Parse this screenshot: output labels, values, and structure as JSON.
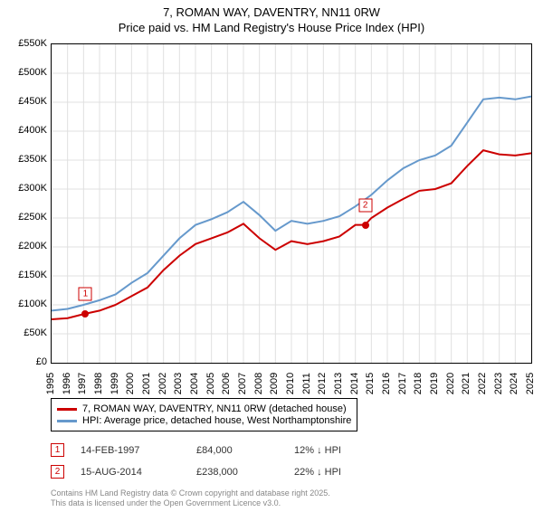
{
  "title_line1": "7, ROMAN WAY, DAVENTRY, NN11 0RW",
  "title_line2": "Price paid vs. HM Land Registry's House Price Index (HPI)",
  "chart": {
    "type": "line",
    "background_color": "#ffffff",
    "grid_color": "#e0e0e0",
    "border_color": "#000000",
    "xlim": [
      1995,
      2025
    ],
    "ylim": [
      0,
      550000
    ],
    "y_ticks": [
      0,
      50000,
      100000,
      150000,
      200000,
      250000,
      300000,
      350000,
      400000,
      450000,
      500000,
      550000
    ],
    "y_tick_labels": [
      "£0",
      "£50K",
      "£100K",
      "£150K",
      "£200K",
      "£250K",
      "£300K",
      "£350K",
      "£400K",
      "£450K",
      "£500K",
      "£550K"
    ],
    "x_ticks": [
      1995,
      1996,
      1997,
      1998,
      1999,
      2000,
      2001,
      2002,
      2003,
      2004,
      2005,
      2006,
      2007,
      2008,
      2009,
      2010,
      2011,
      2012,
      2013,
      2014,
      2015,
      2016,
      2017,
      2018,
      2019,
      2020,
      2021,
      2022,
      2023,
      2024,
      2025
    ],
    "title_fontsize": 13,
    "tick_fontsize": 11,
    "series": {
      "red": {
        "label": "7, ROMAN WAY, DAVENTRY, NN11 0RW (detached house)",
        "color": "#cc0000",
        "line_width": 2,
        "data": [
          [
            1995,
            75000
          ],
          [
            1996,
            77000
          ],
          [
            1997,
            84000
          ],
          [
            1998,
            90000
          ],
          [
            1999,
            100000
          ],
          [
            2000,
            115000
          ],
          [
            2001,
            130000
          ],
          [
            2002,
            160000
          ],
          [
            2003,
            185000
          ],
          [
            2004,
            205000
          ],
          [
            2005,
            215000
          ],
          [
            2006,
            225000
          ],
          [
            2007,
            240000
          ],
          [
            2008,
            215000
          ],
          [
            2009,
            195000
          ],
          [
            2010,
            210000
          ],
          [
            2011,
            205000
          ],
          [
            2012,
            210000
          ],
          [
            2013,
            218000
          ],
          [
            2014,
            238000
          ],
          [
            2014.6,
            238000
          ],
          [
            2015,
            250000
          ],
          [
            2016,
            268000
          ],
          [
            2017,
            283000
          ],
          [
            2018,
            297000
          ],
          [
            2019,
            300000
          ],
          [
            2020,
            310000
          ],
          [
            2021,
            340000
          ],
          [
            2022,
            367000
          ],
          [
            2023,
            360000
          ],
          [
            2024,
            358000
          ],
          [
            2025,
            362000
          ]
        ]
      },
      "blue": {
        "label": "HPI: Average price, detached house, West Northamptonshire",
        "color": "#6699cc",
        "line_width": 2,
        "data": [
          [
            1995,
            90000
          ],
          [
            1996,
            93000
          ],
          [
            1997,
            100000
          ],
          [
            1998,
            108000
          ],
          [
            1999,
            118000
          ],
          [
            2000,
            138000
          ],
          [
            2001,
            155000
          ],
          [
            2002,
            185000
          ],
          [
            2003,
            215000
          ],
          [
            2004,
            238000
          ],
          [
            2005,
            248000
          ],
          [
            2006,
            260000
          ],
          [
            2007,
            278000
          ],
          [
            2008,
            255000
          ],
          [
            2009,
            228000
          ],
          [
            2010,
            245000
          ],
          [
            2011,
            240000
          ],
          [
            2012,
            245000
          ],
          [
            2013,
            253000
          ],
          [
            2014,
            270000
          ],
          [
            2015,
            290000
          ],
          [
            2016,
            315000
          ],
          [
            2017,
            336000
          ],
          [
            2018,
            350000
          ],
          [
            2019,
            358000
          ],
          [
            2020,
            375000
          ],
          [
            2021,
            415000
          ],
          [
            2022,
            455000
          ],
          [
            2023,
            458000
          ],
          [
            2024,
            455000
          ],
          [
            2025,
            460000
          ]
        ]
      }
    },
    "markers": [
      {
        "n": "1",
        "x": 1997.12,
        "y": 84000
      },
      {
        "n": "2",
        "x": 2014.62,
        "y": 238000
      }
    ]
  },
  "legend": {
    "red_label": "7, ROMAN WAY, DAVENTRY, NN11 0RW (detached house)",
    "blue_label": "HPI: Average price, detached house, West Northamptonshire"
  },
  "sales": [
    {
      "n": "1",
      "date": "14-FEB-1997",
      "price": "£84,000",
      "diff": "12% ↓ HPI"
    },
    {
      "n": "2",
      "date": "15-AUG-2014",
      "price": "£238,000",
      "diff": "22% ↓ HPI"
    }
  ],
  "attribution_line1": "Contains HM Land Registry data © Crown copyright and database right 2025.",
  "attribution_line2": "This data is licensed under the Open Government Licence v3.0."
}
